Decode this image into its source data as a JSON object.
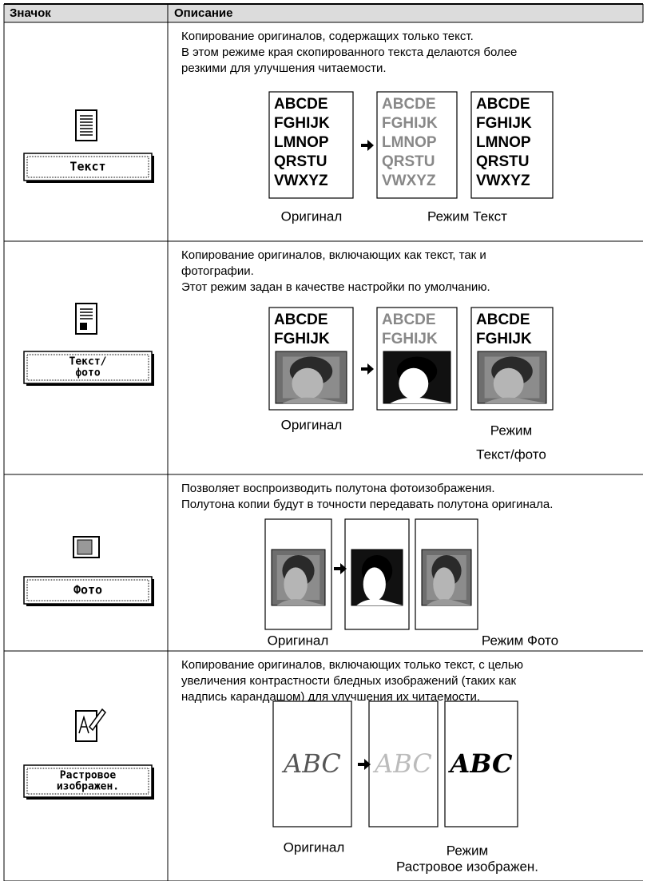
{
  "table": {
    "headers": [
      "Значок",
      "Описание"
    ],
    "rows": [
      {
        "button": [
          "Текст"
        ],
        "description": [
          "Копирование оригиналов, содержащих только текст.",
          "В этом режиме края скопированного текста делаются более",
          "резкими для улучшения читаемости."
        ],
        "sample": [
          "ABCDE",
          "FGHIJK",
          "LMNOP",
          "QRSTU",
          "VWXYZ"
        ],
        "captions": {
          "original": "Оригинал",
          "mode": [
            "Режим Текст"
          ]
        }
      },
      {
        "button": [
          "Текст/",
          "фото"
        ],
        "description": [
          "Копирование оригиналов, включающих как текст, так и",
          "фотографии.",
          "Этот режим задан в качестве настройки по умолчанию."
        ],
        "sample": [
          "ABCDE",
          "FGHIJK"
        ],
        "captions": {
          "original": "Оригинал",
          "mode": [
            "Режим",
            "Текст/фото"
          ]
        }
      },
      {
        "button": [
          "Фото"
        ],
        "description": [
          "Позволяет воспроизводить полутона фотоизображения.",
          "Полутона копии будут в точности передавать полутона оригинала."
        ],
        "captions": {
          "original": "Оригинал",
          "mode": [
            "Режим Фото"
          ]
        }
      },
      {
        "button": [
          "Растровое",
          "изображен."
        ],
        "description": [
          "Копирование оригиналов, включающих только текст, с целью",
          "увеличения контрастности бледных изображений (таких как",
          "надпись карандашом) для улучшения их читаемости."
        ],
        "sample": [
          "ABC"
        ],
        "captions": {
          "original": "Оригинал",
          "mode": [
            "Режим",
            "Растровое изображен."
          ]
        }
      }
    ]
  }
}
